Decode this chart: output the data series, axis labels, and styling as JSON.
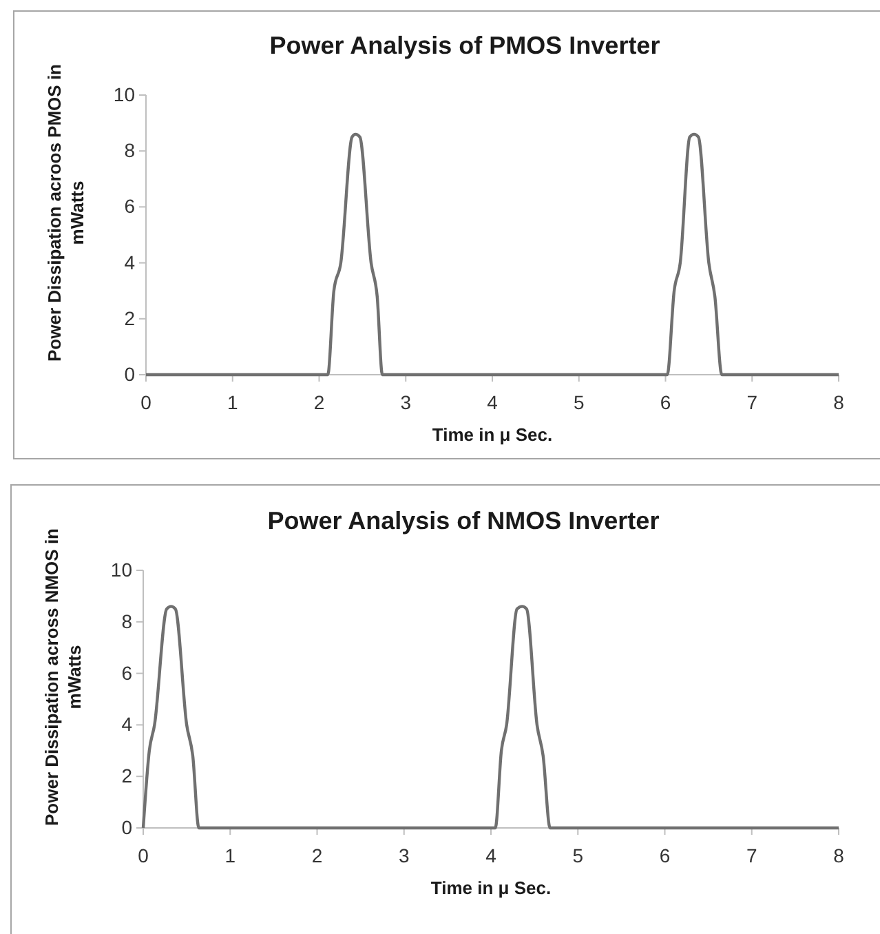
{
  "chart_data": [
    {
      "type": "line",
      "title": "Power Analysis of PMOS Inverter",
      "xlabel": "Time in μ Sec.",
      "ylabel": "Power Dissipation acroos PMOS in mWatts",
      "xlim": [
        0,
        8
      ],
      "xticks": [
        0,
        1,
        2,
        3,
        4,
        5,
        6,
        7,
        8
      ],
      "ylim": [
        0,
        10
      ],
      "yticks": [
        0,
        2,
        4,
        6,
        8,
        10
      ],
      "grid": false,
      "marker": "none",
      "line_style": "solid",
      "series": [
        {
          "color": "#707070",
          "x": [
            0,
            1,
            2,
            2.1,
            2.17,
            2.25,
            2.38,
            2.42,
            2.47,
            2.6,
            2.67,
            2.73,
            3,
            4,
            5,
            6,
            6.02,
            6.1,
            6.17,
            6.28,
            6.33,
            6.38,
            6.5,
            6.57,
            6.65,
            7,
            8
          ],
          "values": [
            0,
            0,
            0,
            0,
            3,
            4,
            8.5,
            8.6,
            8.5,
            4,
            2.8,
            0,
            0,
            0,
            0,
            0,
            0,
            3,
            4,
            8.5,
            8.6,
            8.5,
            4,
            2.8,
            0,
            0,
            0
          ]
        }
      ]
    },
    {
      "type": "line",
      "title": "Power Analysis of NMOS Inverter",
      "xlabel": "Time in μ Sec.",
      "ylabel": "Power Dissipation across NMOS in mWatts",
      "xlim": [
        0,
        8
      ],
      "xticks": [
        0,
        1,
        2,
        3,
        4,
        5,
        6,
        7,
        8
      ],
      "ylim": [
        0,
        10
      ],
      "yticks": [
        0,
        2,
        4,
        6,
        8,
        10
      ],
      "grid": false,
      "marker": "none",
      "line_style": "solid",
      "series": [
        {
          "color": "#707070",
          "x": [
            0,
            0.07,
            0.13,
            0.27,
            0.32,
            0.37,
            0.5,
            0.57,
            0.64,
            1,
            2,
            3,
            4,
            4.05,
            4.12,
            4.18,
            4.3,
            4.36,
            4.41,
            4.53,
            4.6,
            4.68,
            5,
            6,
            7,
            8
          ],
          "values": [
            0,
            3,
            4,
            8.5,
            8.6,
            8.5,
            4,
            2.8,
            0,
            0,
            0,
            0,
            0,
            0,
            3,
            4,
            8.5,
            8.6,
            8.5,
            4,
            2.8,
            0,
            0,
            0,
            0,
            0
          ]
        }
      ]
    }
  ]
}
